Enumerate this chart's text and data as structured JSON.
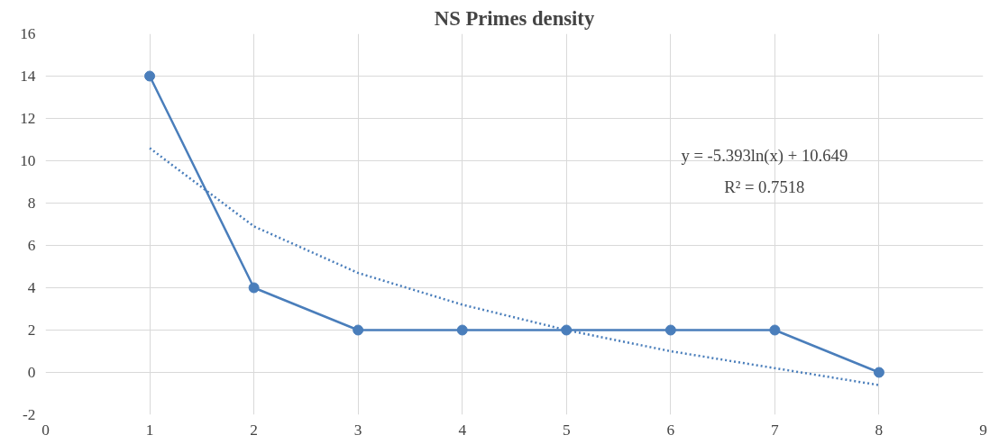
{
  "chart_data": {
    "type": "line",
    "title": "NS Primes density",
    "x": [
      1,
      2,
      3,
      4,
      5,
      6,
      7,
      8
    ],
    "series": [
      {
        "color": "#4a7ebb",
        "values": [
          14,
          4,
          2,
          2,
          2,
          2,
          2,
          0
        ],
        "marker": "circle",
        "line_style": "solid"
      },
      {
        "color": "#4a7ebb",
        "x": [
          1,
          2,
          3,
          4,
          5,
          6,
          7,
          8
        ],
        "values": [
          10.6,
          6.9,
          4.7,
          3.2,
          2.0,
          1.0,
          0.2,
          -0.6
        ],
        "marker": "none",
        "line_style": "dotted"
      }
    ],
    "xlim": [
      0,
      9
    ],
    "xticks": [
      0,
      1,
      2,
      3,
      4,
      5,
      6,
      7,
      8,
      9
    ],
    "ylim": [
      -2,
      16
    ],
    "yticks": [
      -2,
      0,
      2,
      4,
      6,
      8,
      10,
      12,
      14,
      16
    ],
    "grid": true,
    "annotations": [
      "y = -5.393ln(x) + 10.649",
      "R² = 0.7518"
    ]
  }
}
